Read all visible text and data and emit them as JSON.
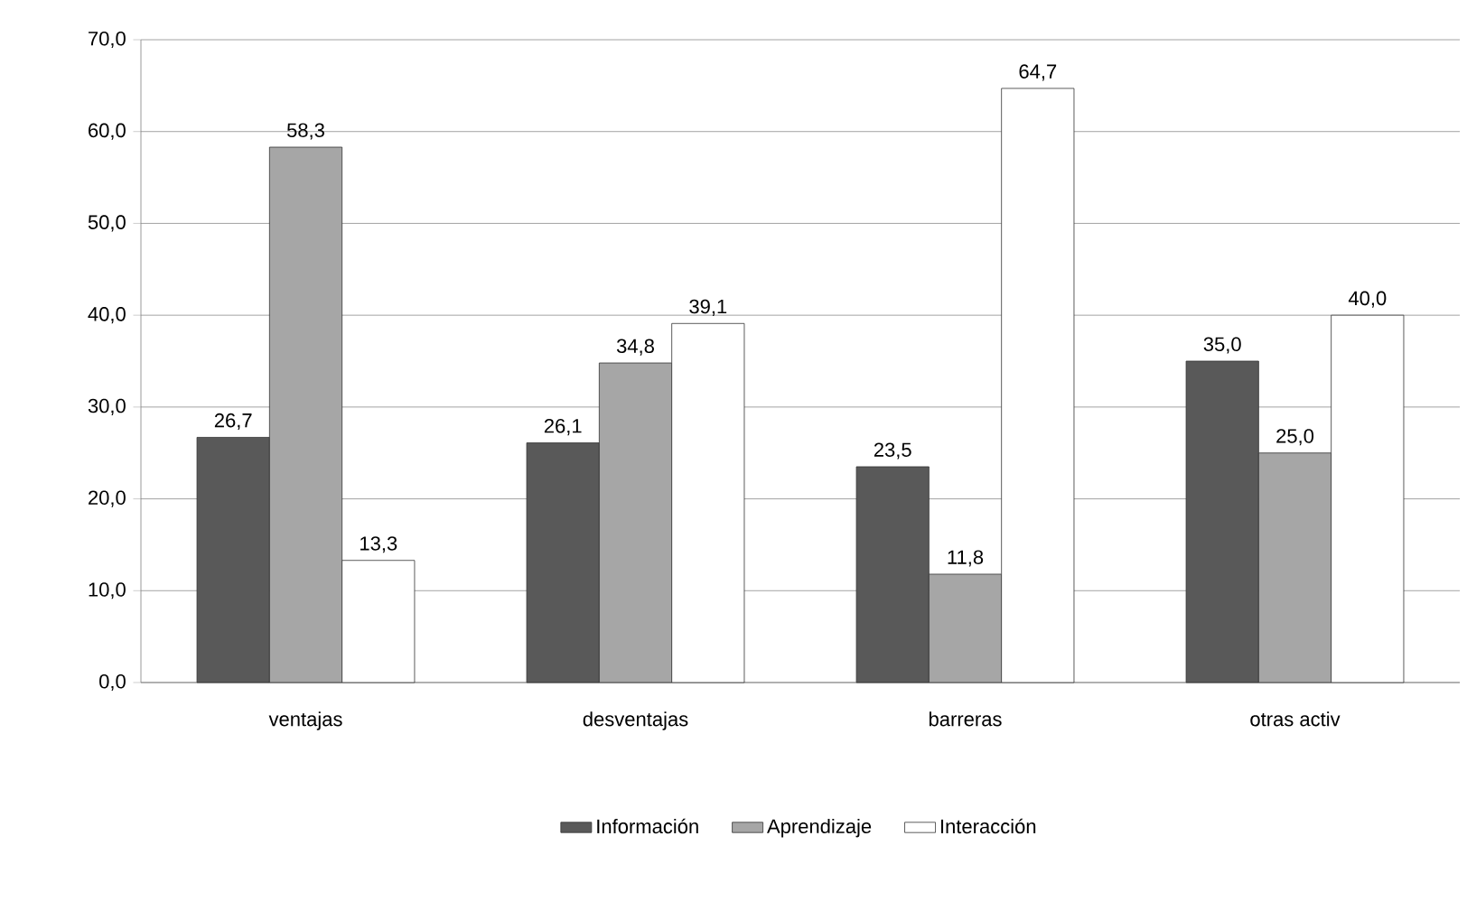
{
  "chart_data": {
    "type": "bar",
    "categories": [
      "ventajas",
      "desventajas",
      "barreras",
      "otras activ"
    ],
    "series": [
      {
        "name": "Información",
        "color": "#595959",
        "values": [
          26.7,
          26.1,
          23.5,
          35.0
        ],
        "value_labels": [
          "26,7",
          "26,1",
          "23,5",
          "35,0"
        ]
      },
      {
        "name": "Aprendizaje",
        "color": "#a6a6a6",
        "values": [
          58.3,
          34.8,
          11.8,
          25.0
        ],
        "value_labels": [
          "58,3",
          "34,8",
          "11,8",
          "25,0"
        ]
      },
      {
        "name": "Interacción",
        "color": "#ffffff",
        "values": [
          13.3,
          39.1,
          64.7,
          40.0
        ],
        "value_labels": [
          "13,3",
          "39,1",
          "64,7",
          "40,0"
        ]
      }
    ],
    "ylim": [
      0,
      70
    ],
    "yticks": [
      {
        "value": 0,
        "label": "0,0"
      },
      {
        "value": 10,
        "label": "10,0"
      },
      {
        "value": 20,
        "label": "20,0"
      },
      {
        "value": 30,
        "label": "30,0"
      },
      {
        "value": 40,
        "label": "40,0"
      },
      {
        "value": 50,
        "label": "50,0"
      },
      {
        "value": 60,
        "label": "60,0"
      },
      {
        "value": 70,
        "label": "70,0"
      }
    ],
    "grid": "y",
    "legend": "bottom"
  }
}
